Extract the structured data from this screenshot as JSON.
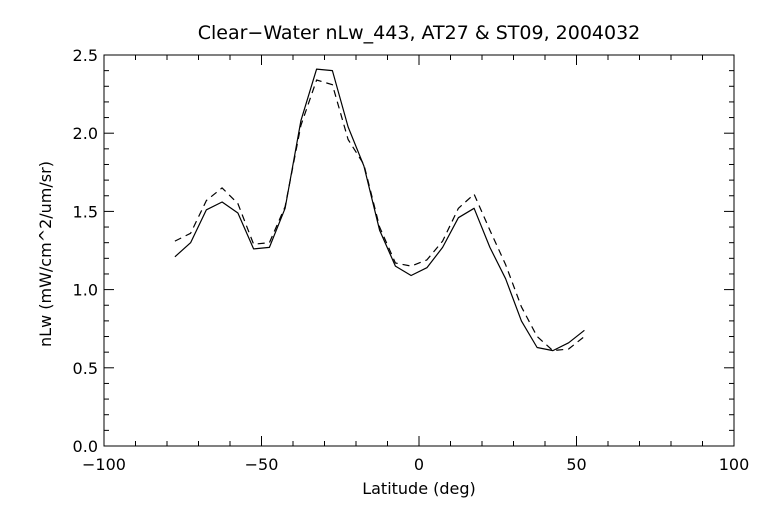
{
  "chart_data": {
    "type": "line",
    "title": "Clear−Water nLw_443, AT27 & ST09, 2004032",
    "xlabel": "Latitude (deg)",
    "ylabel": "nLw (mW/cm^2/um/sr)",
    "xlim": [
      -100,
      100
    ],
    "ylim": [
      0.0,
      2.5
    ],
    "xticks": [
      -100,
      -50,
      0,
      50,
      100
    ],
    "xtick_labels": [
      "−100",
      "−50",
      "0",
      "50",
      "100"
    ],
    "yticks": [
      0.0,
      0.5,
      1.0,
      1.5,
      2.0,
      2.5
    ],
    "ytick_labels": [
      "0.0",
      "0.5",
      "1.0",
      "1.5",
      "2.0",
      "2.5"
    ],
    "grid": false,
    "series": [
      {
        "style": "solid",
        "x": [
          -77.5,
          -72.5,
          -67.5,
          -62.5,
          -57.5,
          -52.5,
          -47.5,
          -42.5,
          -37.5,
          -32.5,
          -27.5,
          -22.5,
          -17.5,
          -12.5,
          -7.5,
          -2.5,
          2.5,
          7.5,
          12.5,
          17.5,
          22.5,
          27.5,
          32.5,
          37.5,
          42.5,
          47.5,
          52.5
        ],
        "y": [
          1.21,
          1.3,
          1.51,
          1.56,
          1.49,
          1.26,
          1.27,
          1.52,
          2.08,
          2.41,
          2.4,
          2.04,
          1.79,
          1.38,
          1.15,
          1.09,
          1.14,
          1.27,
          1.46,
          1.52,
          1.27,
          1.07,
          0.8,
          0.63,
          0.61,
          0.66,
          0.74
        ]
      },
      {
        "style": "dashed",
        "x": [
          -77.5,
          -72.5,
          -67.5,
          -62.5,
          -57.5,
          -52.5,
          -47.5,
          -42.5,
          -37.5,
          -32.5,
          -27.5,
          -22.5,
          -17.5,
          -12.5,
          -7.5,
          -2.5,
          2.5,
          7.5,
          12.5,
          17.5,
          22.5,
          27.5,
          32.5,
          37.5,
          42.5,
          47.5,
          52.5
        ],
        "y": [
          1.31,
          1.36,
          1.57,
          1.65,
          1.55,
          1.29,
          1.3,
          1.53,
          2.05,
          2.34,
          2.31,
          1.96,
          1.8,
          1.4,
          1.17,
          1.15,
          1.19,
          1.31,
          1.52,
          1.61,
          1.38,
          1.16,
          0.89,
          0.7,
          0.61,
          0.62,
          0.7
        ]
      }
    ]
  }
}
